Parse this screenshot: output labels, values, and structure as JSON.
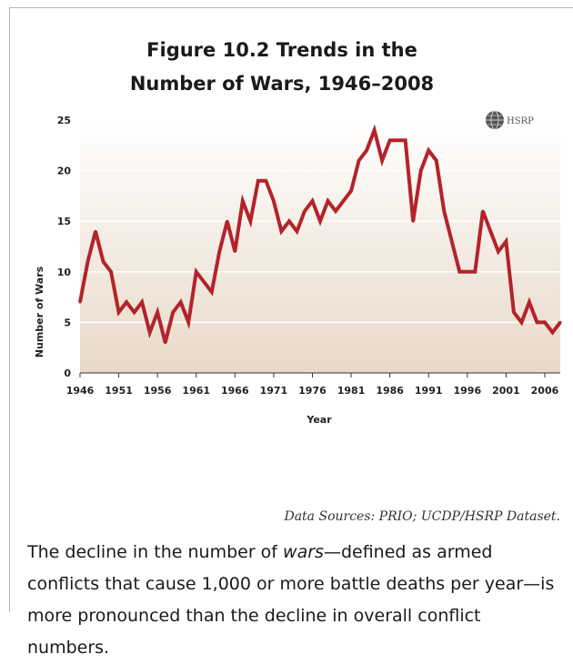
{
  "title_line1": "Figure 10.2 Trends in the",
  "title_line2": "Number of Wars, 1946–2008",
  "logo_text": "HSRP",
  "source": "Data Sources: PRIO; UCDP/HSRP Dataset.",
  "caption": {
    "part1": "The decline in the number of ",
    "emphasis": "wars",
    "part2": "—defined as armed conflicts that cause 1,000 or more battle deaths per year—is more pronounced than the decline in overall conflict numbers."
  },
  "colors": {
    "line": "#b3232b",
    "bg_top": "#ffffff",
    "bg_bottom": "#e8d9c8",
    "grid": "#ffffff"
  },
  "chart_data": {
    "type": "line",
    "xlabel": "Year",
    "ylabel": "Number of Wars",
    "xlim": [
      1946,
      2008
    ],
    "ylim": [
      0,
      25
    ],
    "grid": true,
    "x_ticks": [
      1946,
      1951,
      1956,
      1961,
      1966,
      1971,
      1976,
      1981,
      1986,
      1991,
      1996,
      2001,
      2006
    ],
    "y_ticks": [
      0,
      5,
      10,
      15,
      20,
      25
    ],
    "x": [
      1946,
      1947,
      1948,
      1949,
      1950,
      1951,
      1952,
      1953,
      1954,
      1955,
      1956,
      1957,
      1958,
      1959,
      1960,
      1961,
      1962,
      1963,
      1964,
      1965,
      1966,
      1967,
      1968,
      1969,
      1970,
      1971,
      1972,
      1973,
      1974,
      1975,
      1976,
      1977,
      1978,
      1979,
      1980,
      1981,
      1982,
      1983,
      1984,
      1985,
      1986,
      1987,
      1988,
      1989,
      1990,
      1991,
      1992,
      1993,
      1994,
      1995,
      1996,
      1997,
      1998,
      1999,
      2000,
      2001,
      2002,
      2003,
      2004,
      2005,
      2006,
      2007,
      2008
    ],
    "series": [
      {
        "values": [
          7,
          11,
          14,
          11,
          10,
          6,
          7,
          6,
          7,
          4,
          6,
          3,
          6,
          7,
          5,
          10,
          9,
          8,
          12,
          15,
          12,
          17,
          15,
          19,
          19,
          17,
          14,
          15,
          14,
          16,
          17,
          15,
          17,
          16,
          17,
          18,
          21,
          22,
          24,
          21,
          23,
          23,
          23,
          15,
          20,
          22,
          21,
          16,
          13,
          10,
          10,
          10,
          16,
          14,
          12,
          13,
          6,
          5,
          7,
          5,
          5,
          4,
          5
        ]
      }
    ]
  }
}
